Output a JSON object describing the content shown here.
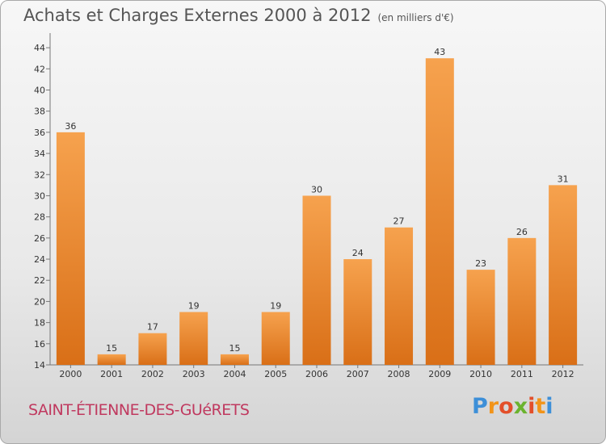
{
  "title": "Achats et Charges Externes 2000 à 2012",
  "unit_label": "(en milliers d'€)",
  "commune": "SAINT-ÉTIENNE-DES-GUéRETS",
  "logo": {
    "letters": [
      "P",
      "r",
      "o",
      "x",
      "i",
      "t",
      "i"
    ],
    "colors": [
      "#3d8fd8",
      "#f29419",
      "#e34f2a",
      "#6bb32e",
      "#e34f2a",
      "#f29419",
      "#3d8fd8"
    ]
  },
  "chart_data": {
    "type": "bar",
    "title": "Achats et Charges Externes 2000 à 2012",
    "categories": [
      "2000",
      "2001",
      "2002",
      "2003",
      "2004",
      "2005",
      "2006",
      "2007",
      "2008",
      "2009",
      "2010",
      "2011",
      "2012"
    ],
    "values": [
      36,
      15,
      17,
      19,
      15,
      19,
      30,
      24,
      27,
      43,
      23,
      26,
      31
    ],
    "ylim": [
      14,
      45
    ],
    "yticks": [
      14,
      16,
      18,
      20,
      22,
      24,
      26,
      28,
      30,
      32,
      34,
      36,
      38,
      40,
      42,
      44
    ],
    "grid": false,
    "bar_color": "#f0923a"
  }
}
